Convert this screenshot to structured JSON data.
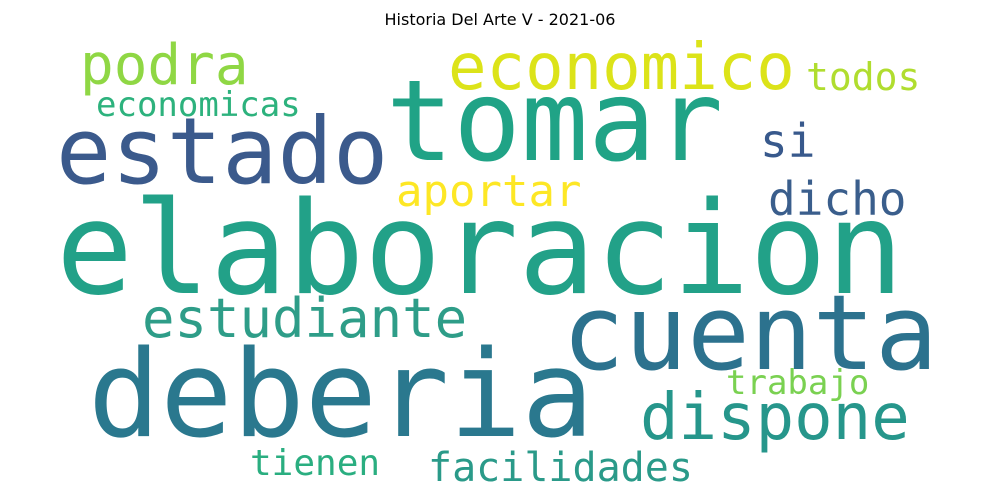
{
  "title": "Historia Del Arte V - 2021-06",
  "words": [
    {
      "text": "elaboracion",
      "color": "#22a188"
    },
    {
      "text": "tomar",
      "color": "#20a386"
    },
    {
      "text": "deberia",
      "color": "#2a788e"
    },
    {
      "text": "cuenta",
      "color": "#2c728e"
    },
    {
      "text": "estado",
      "color": "#3b5a8c"
    },
    {
      "text": "economico",
      "color": "#dce319"
    },
    {
      "text": "podra",
      "color": "#8fd744"
    },
    {
      "text": "dispone",
      "color": "#26968b"
    },
    {
      "text": "estudiante",
      "color": "#2e9d88"
    },
    {
      "text": "facilidades",
      "color": "#2a9a89"
    },
    {
      "text": "aportar",
      "color": "#fde725"
    },
    {
      "text": "dicho",
      "color": "#3a5e8c"
    },
    {
      "text": "si",
      "color": "#38598c"
    },
    {
      "text": "todos",
      "color": "#b0dd2f"
    },
    {
      "text": "economicas",
      "color": "#2db27d"
    },
    {
      "text": "trabajo",
      "color": "#7ad151"
    },
    {
      "text": "tienen",
      "color": "#2aae80"
    }
  ]
}
